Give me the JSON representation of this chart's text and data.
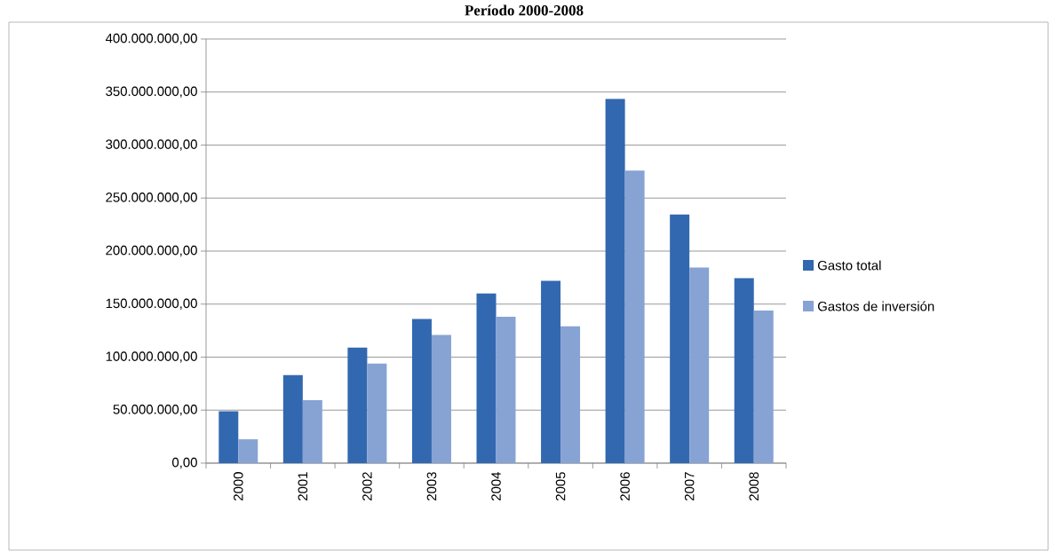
{
  "chart_data": {
    "type": "bar",
    "title": "Período 2000-2008",
    "categories": [
      "2000",
      "2001",
      "2002",
      "2003",
      "2004",
      "2005",
      "2006",
      "2007",
      "2008"
    ],
    "series": [
      {
        "name": "Gasto total",
        "color": "#3268b0",
        "values": [
          49000000,
          83000000,
          109000000,
          136000000,
          160000000,
          172000000,
          343500000,
          234500000,
          174500000
        ]
      },
      {
        "name": "Gastos de inversión",
        "color": "#87a3d4",
        "values": [
          22500000,
          59500000,
          94000000,
          121000000,
          138000000,
          129000000,
          276000000,
          184500000,
          144000000
        ]
      }
    ],
    "ylim": [
      0,
      400000000
    ],
    "yticks": [
      {
        "value": 0,
        "label": "0,00"
      },
      {
        "value": 50000000,
        "label": "50.000.000,00"
      },
      {
        "value": 100000000,
        "label": "100.000.000,00"
      },
      {
        "value": 150000000,
        "label": "150.000.000,00"
      },
      {
        "value": 200000000,
        "label": "200.000.000,00"
      },
      {
        "value": 250000000,
        "label": "250.000.000,00"
      },
      {
        "value": 300000000,
        "label": "300.000.000,00"
      },
      {
        "value": 350000000,
        "label": "350.000.000,00"
      },
      {
        "value": 400000000,
        "label": "400.000.000,00"
      }
    ],
    "grid": "y",
    "legend": "right"
  }
}
